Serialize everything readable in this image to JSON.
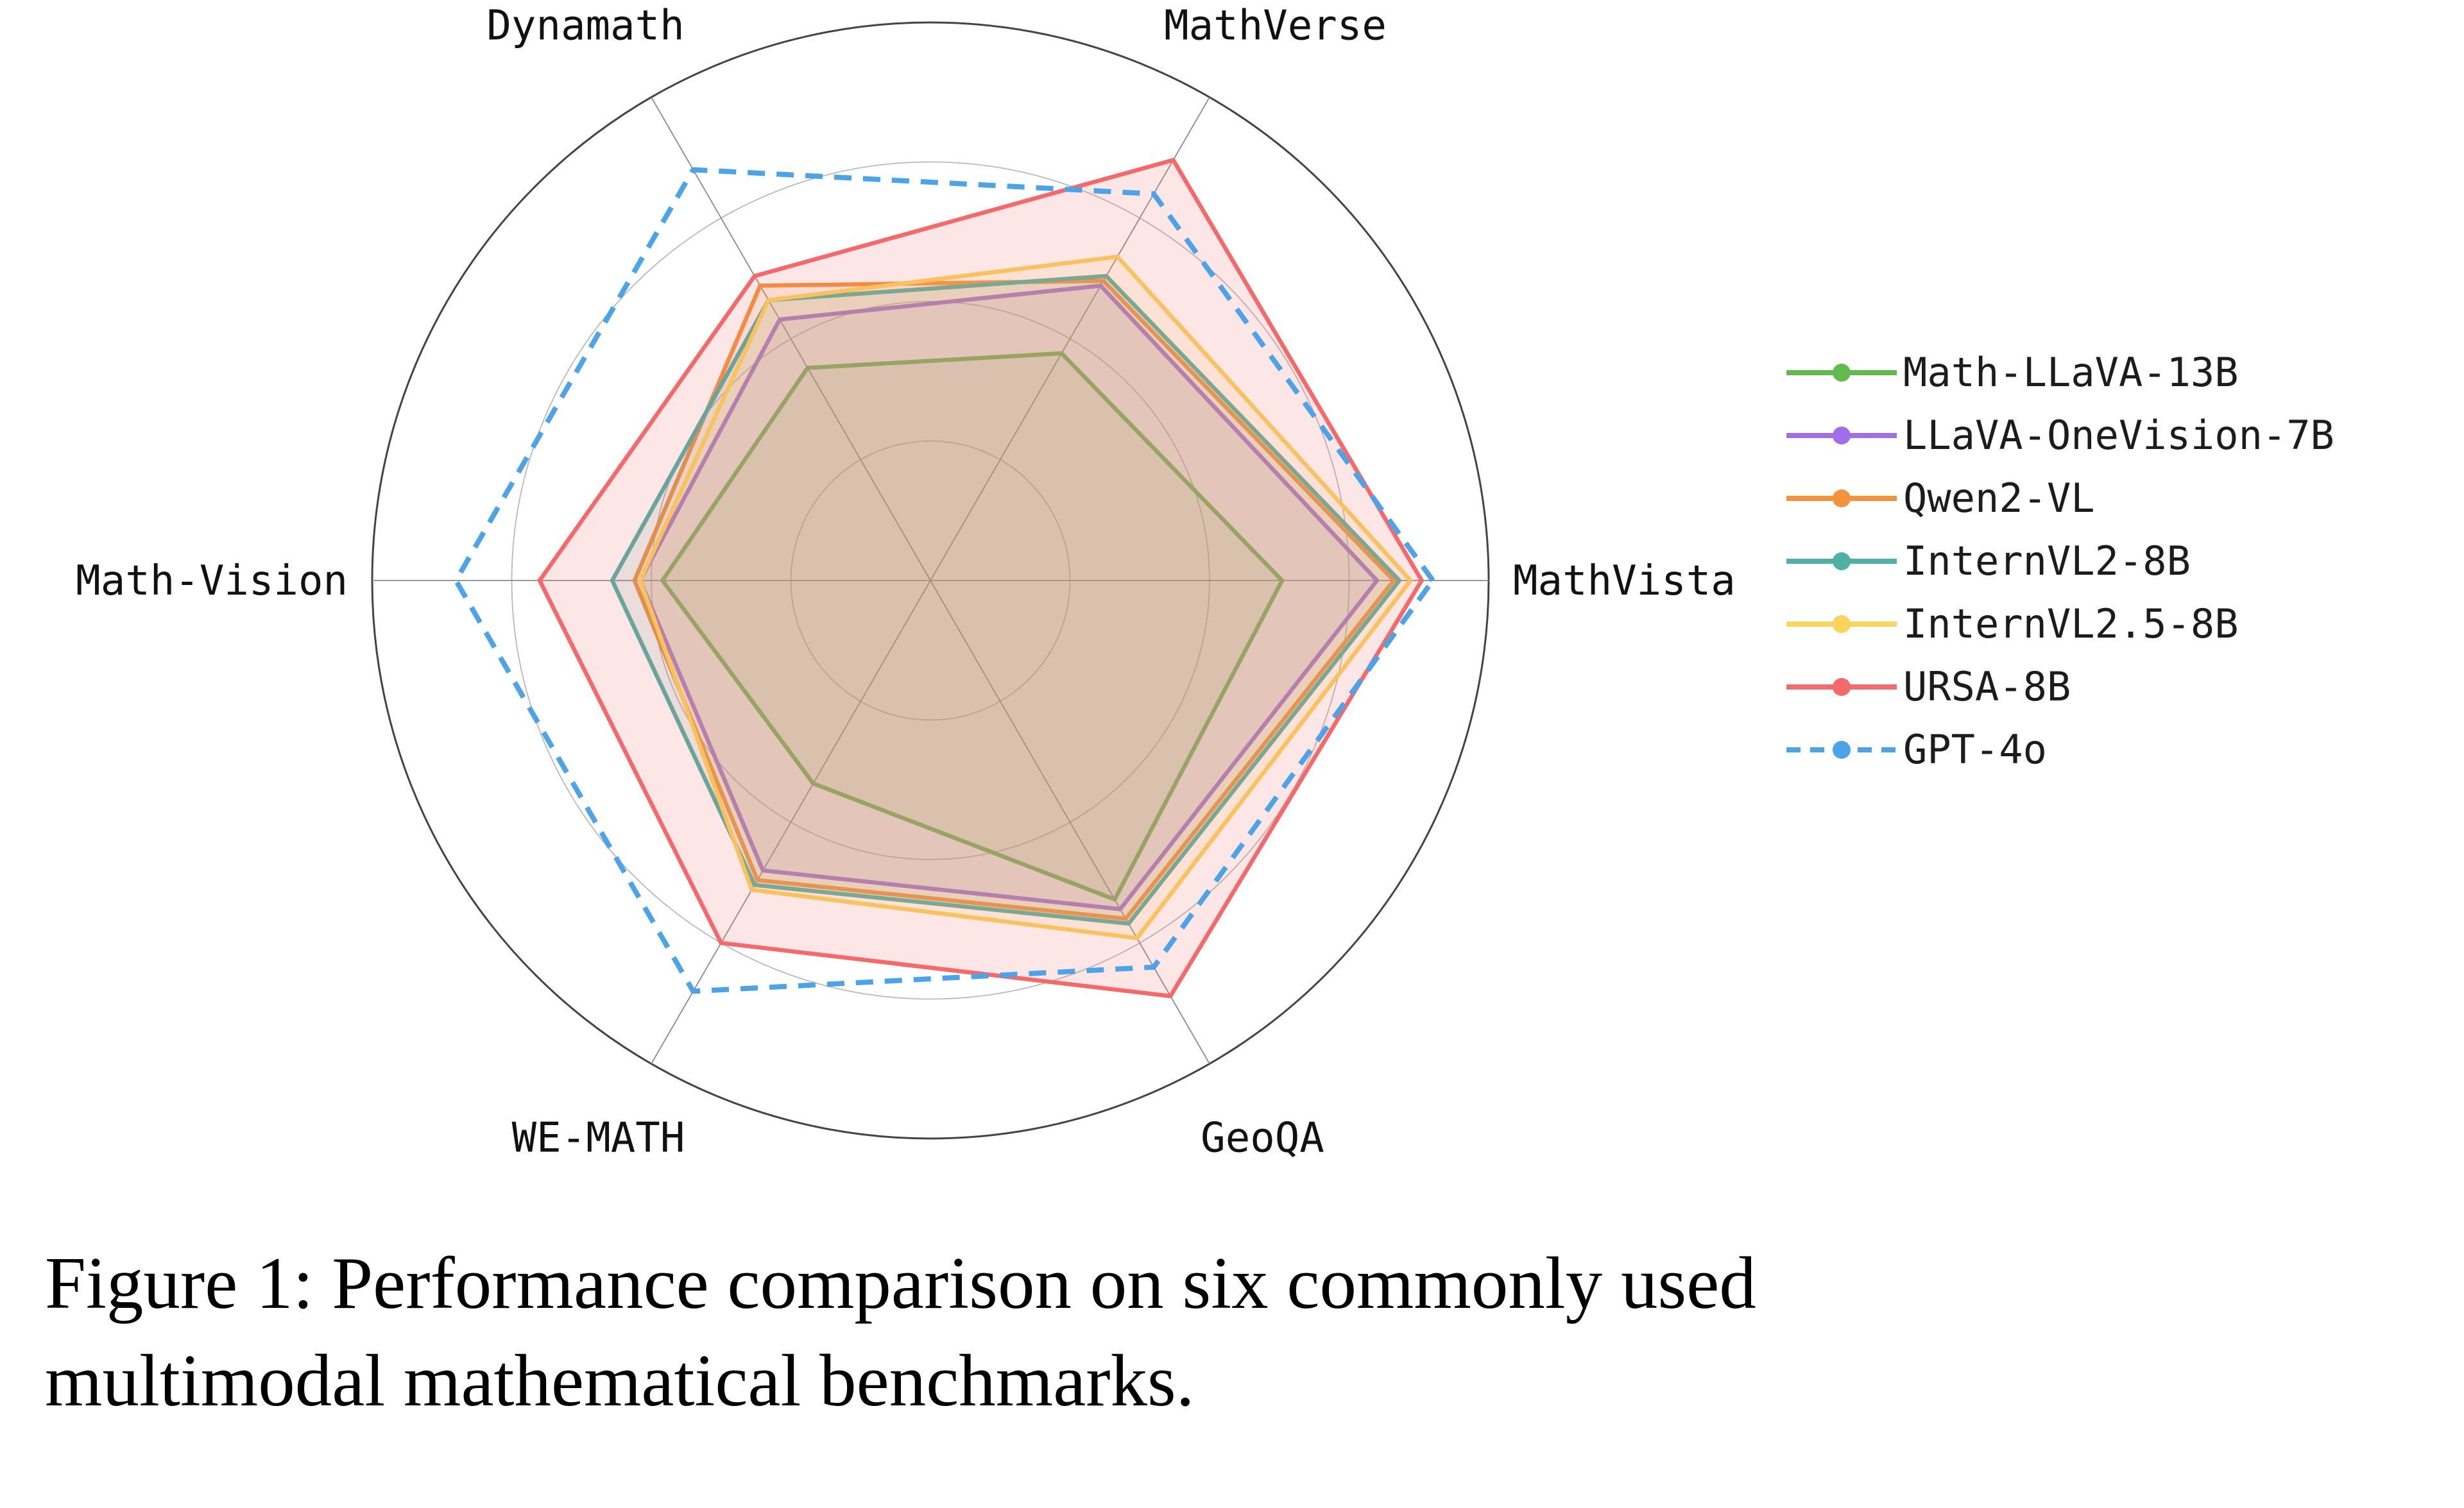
{
  "figure": {
    "caption_line1": "Figure 1: Performance comparison on six commonly used",
    "caption_line2": "multimodal mathematical benchmarks."
  },
  "chart_data": {
    "type": "radar",
    "title": "",
    "axes": [
      "MathVista",
      "MathVerse",
      "Dynamath",
      "Math-Vision",
      "WE-MATH",
      "GeoQA"
    ],
    "rlim": [
      0,
      1
    ],
    "scale_note": "radial axis unlabeled; values estimated as fraction of outer circle radius",
    "grid_circles": [
      0.25,
      0.5,
      0.75,
      1.0
    ],
    "legend_position": "right",
    "series": [
      {
        "name": "Math-LLaVA-13B",
        "color": "#63bb4d",
        "dashed": false,
        "values": [
          0.63,
          0.47,
          0.44,
          0.48,
          0.42,
          0.66
        ]
      },
      {
        "name": "LLaVA-OneVision-7B",
        "color": "#a06ee8",
        "dashed": false,
        "values": [
          0.8,
          0.61,
          0.54,
          0.52,
          0.6,
          0.68
        ]
      },
      {
        "name": "Qwen2-VL",
        "color": "#f5923e",
        "dashed": false,
        "values": [
          0.83,
          0.62,
          0.61,
          0.53,
          0.62,
          0.7
        ]
      },
      {
        "name": "InternVL2-8B",
        "color": "#4fb0a5",
        "dashed": false,
        "values": [
          0.84,
          0.63,
          0.58,
          0.57,
          0.63,
          0.71
        ]
      },
      {
        "name": "InternVL2.5-8B",
        "color": "#fbd45c",
        "dashed": false,
        "values": [
          0.86,
          0.67,
          0.58,
          0.52,
          0.64,
          0.74
        ]
      },
      {
        "name": "URSA-8B",
        "color": "#f5696b",
        "dashed": false,
        "values": [
          0.88,
          0.87,
          0.63,
          0.7,
          0.75,
          0.86
        ]
      },
      {
        "name": "GPT-4o",
        "color": "#4da3e8",
        "dashed": true,
        "values": [
          0.9,
          0.8,
          0.85,
          0.85,
          0.85,
          0.8
        ]
      }
    ]
  }
}
